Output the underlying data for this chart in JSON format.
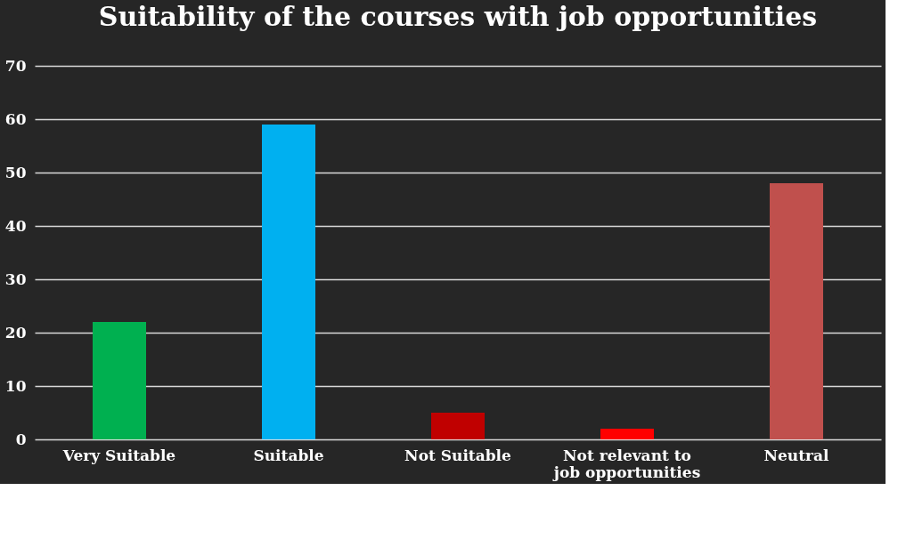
{
  "chart_data": {
    "type": "bar",
    "title": "Suitability of the courses with job opportunities",
    "categories": [
      "Very Suitable",
      "Suitable",
      "Not Suitable",
      "Not relevant to job opportunities",
      "Neutral"
    ],
    "values": [
      22,
      59,
      5,
      2,
      48
    ],
    "colors": [
      "#00b050",
      "#00b0f0",
      "#c00000",
      "#ff0000",
      "#c0504d"
    ],
    "ylim": [
      0,
      70
    ],
    "yticks": [
      0,
      10,
      20,
      30,
      40,
      50,
      60,
      70
    ],
    "grid": "y"
  }
}
